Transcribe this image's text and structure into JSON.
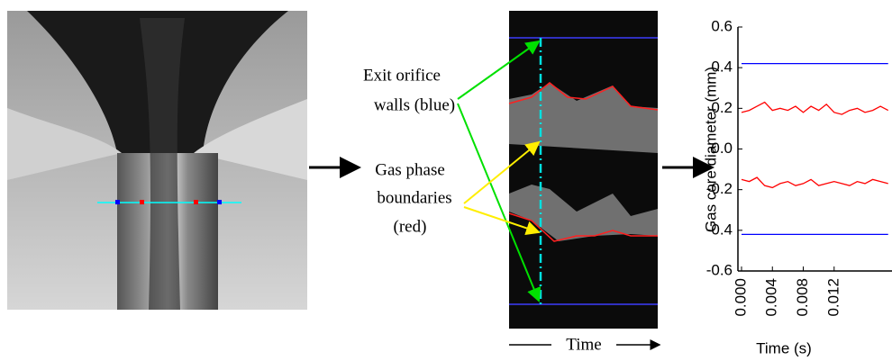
{
  "annotations": {
    "walls": [
      "Exit orifice",
      "walls (blue)"
    ],
    "boundaries": [
      "Gas phase",
      "boundaries",
      "(red)"
    ],
    "time": "Time"
  },
  "chart_data": {
    "type": "line",
    "y_label": "Gas core diameter (mm)",
    "x_label": "Time (s)",
    "x": [
      0,
      0.001,
      0.002,
      0.003,
      0.004,
      0.005,
      0.006,
      0.007,
      0.008,
      0.009,
      0.01,
      0.011,
      0.012,
      0.013,
      0.014,
      0.015,
      0.016,
      0.017,
      0.018,
      0.019
    ],
    "series": [
      {
        "color": "#0000ff",
        "values": [
          0.42,
          0.42,
          0.42,
          0.42,
          0.42,
          0.42,
          0.42,
          0.42,
          0.42,
          0.42,
          0.42,
          0.42,
          0.42,
          0.42,
          0.42,
          0.42,
          0.42,
          0.42,
          0.42,
          0.42
        ]
      },
      {
        "color": "#ff0000",
        "values": [
          0.18,
          0.19,
          0.21,
          0.23,
          0.19,
          0.2,
          0.19,
          0.21,
          0.18,
          0.21,
          0.19,
          0.22,
          0.18,
          0.17,
          0.19,
          0.2,
          0.18,
          0.19,
          0.21,
          0.19
        ]
      },
      {
        "color": "#ff0000",
        "values": [
          -0.15,
          -0.16,
          -0.14,
          -0.18,
          -0.19,
          -0.17,
          -0.16,
          -0.18,
          -0.17,
          -0.15,
          -0.18,
          -0.17,
          -0.16,
          -0.17,
          -0.18,
          -0.16,
          -0.17,
          -0.15,
          -0.16,
          -0.17
        ]
      },
      {
        "color": "#0000ff",
        "values": [
          -0.42,
          -0.42,
          -0.42,
          -0.42,
          -0.42,
          -0.42,
          -0.42,
          -0.42,
          -0.42,
          -0.42,
          -0.42,
          -0.42,
          -0.42,
          -0.42,
          -0.42,
          -0.42,
          -0.42,
          -0.42,
          -0.42,
          -0.42
        ]
      }
    ],
    "xlim": [
      0,
      0.0195
    ],
    "ylim": [
      -0.6,
      0.6
    ],
    "xticks": [
      {
        "value": 0,
        "label": "0.000"
      },
      {
        "value": 0.004,
        "label": "0.004"
      },
      {
        "value": 0.008,
        "label": "0.008"
      },
      {
        "value": 0.012,
        "label": "0.012"
      }
    ],
    "yticks": [
      {
        "value": -0.6,
        "label": "-0.6"
      },
      {
        "value": -0.4,
        "label": "-0.4"
      },
      {
        "value": -0.2,
        "label": "-0.2"
      },
      {
        "value": 0,
        "label": "0.0"
      },
      {
        "value": 0.2,
        "label": "0.2"
      },
      {
        "value": 0.4,
        "label": "0.4"
      },
      {
        "value": 0.6,
        "label": "0.6"
      }
    ]
  }
}
